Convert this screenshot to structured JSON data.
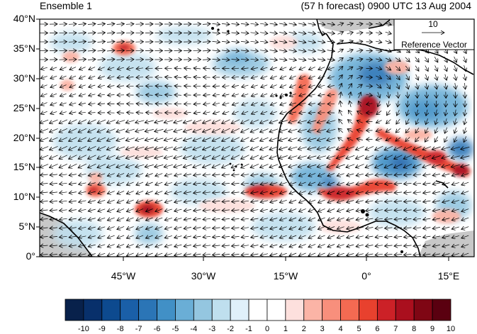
{
  "titles": {
    "left": "Ensemble 1",
    "right": "(57 h forecast) 0900 UTC 13 Aug 2004"
  },
  "reference_vector": {
    "magnitude": "10",
    "label": "Reference Vector"
  },
  "axes": {
    "lat_ticks": [
      "40°N",
      "35°N",
      "30°N",
      "25°N",
      "20°N",
      "15°N",
      "10°N",
      "5°N",
      "0°"
    ],
    "lon_ticks": [
      "45°W",
      "30°W",
      "15°W",
      "0°",
      "15°E"
    ]
  },
  "colorbar": {
    "labels": [
      "-10",
      "-9",
      "-8",
      "-7",
      "-6",
      "-5",
      "-4",
      "-3",
      "-2",
      "-1",
      "0",
      "1",
      "2",
      "3",
      "4",
      "5",
      "6",
      "7",
      "8",
      "9",
      "10"
    ],
    "colors": [
      "#08214b",
      "#08306b",
      "#0d4a8f",
      "#1a5fa8",
      "#2b75b6",
      "#4190c6",
      "#6aaed6",
      "#94c6e0",
      "#bfdfee",
      "#e0f0fa",
      "#ffffff",
      "#ffffff",
      "#fde0dd",
      "#fbb4a6",
      "#f88f7c",
      "#f46a52",
      "#e8412e",
      "#cc2127",
      "#aa0f1e",
      "#7f0614",
      "#5a0010"
    ],
    "land_color": "#c8c8c8"
  },
  "map": {
    "type": "map-field",
    "field_colors": {
      "positive": "#d7301f",
      "negative": "#2171b5"
    }
  }
}
